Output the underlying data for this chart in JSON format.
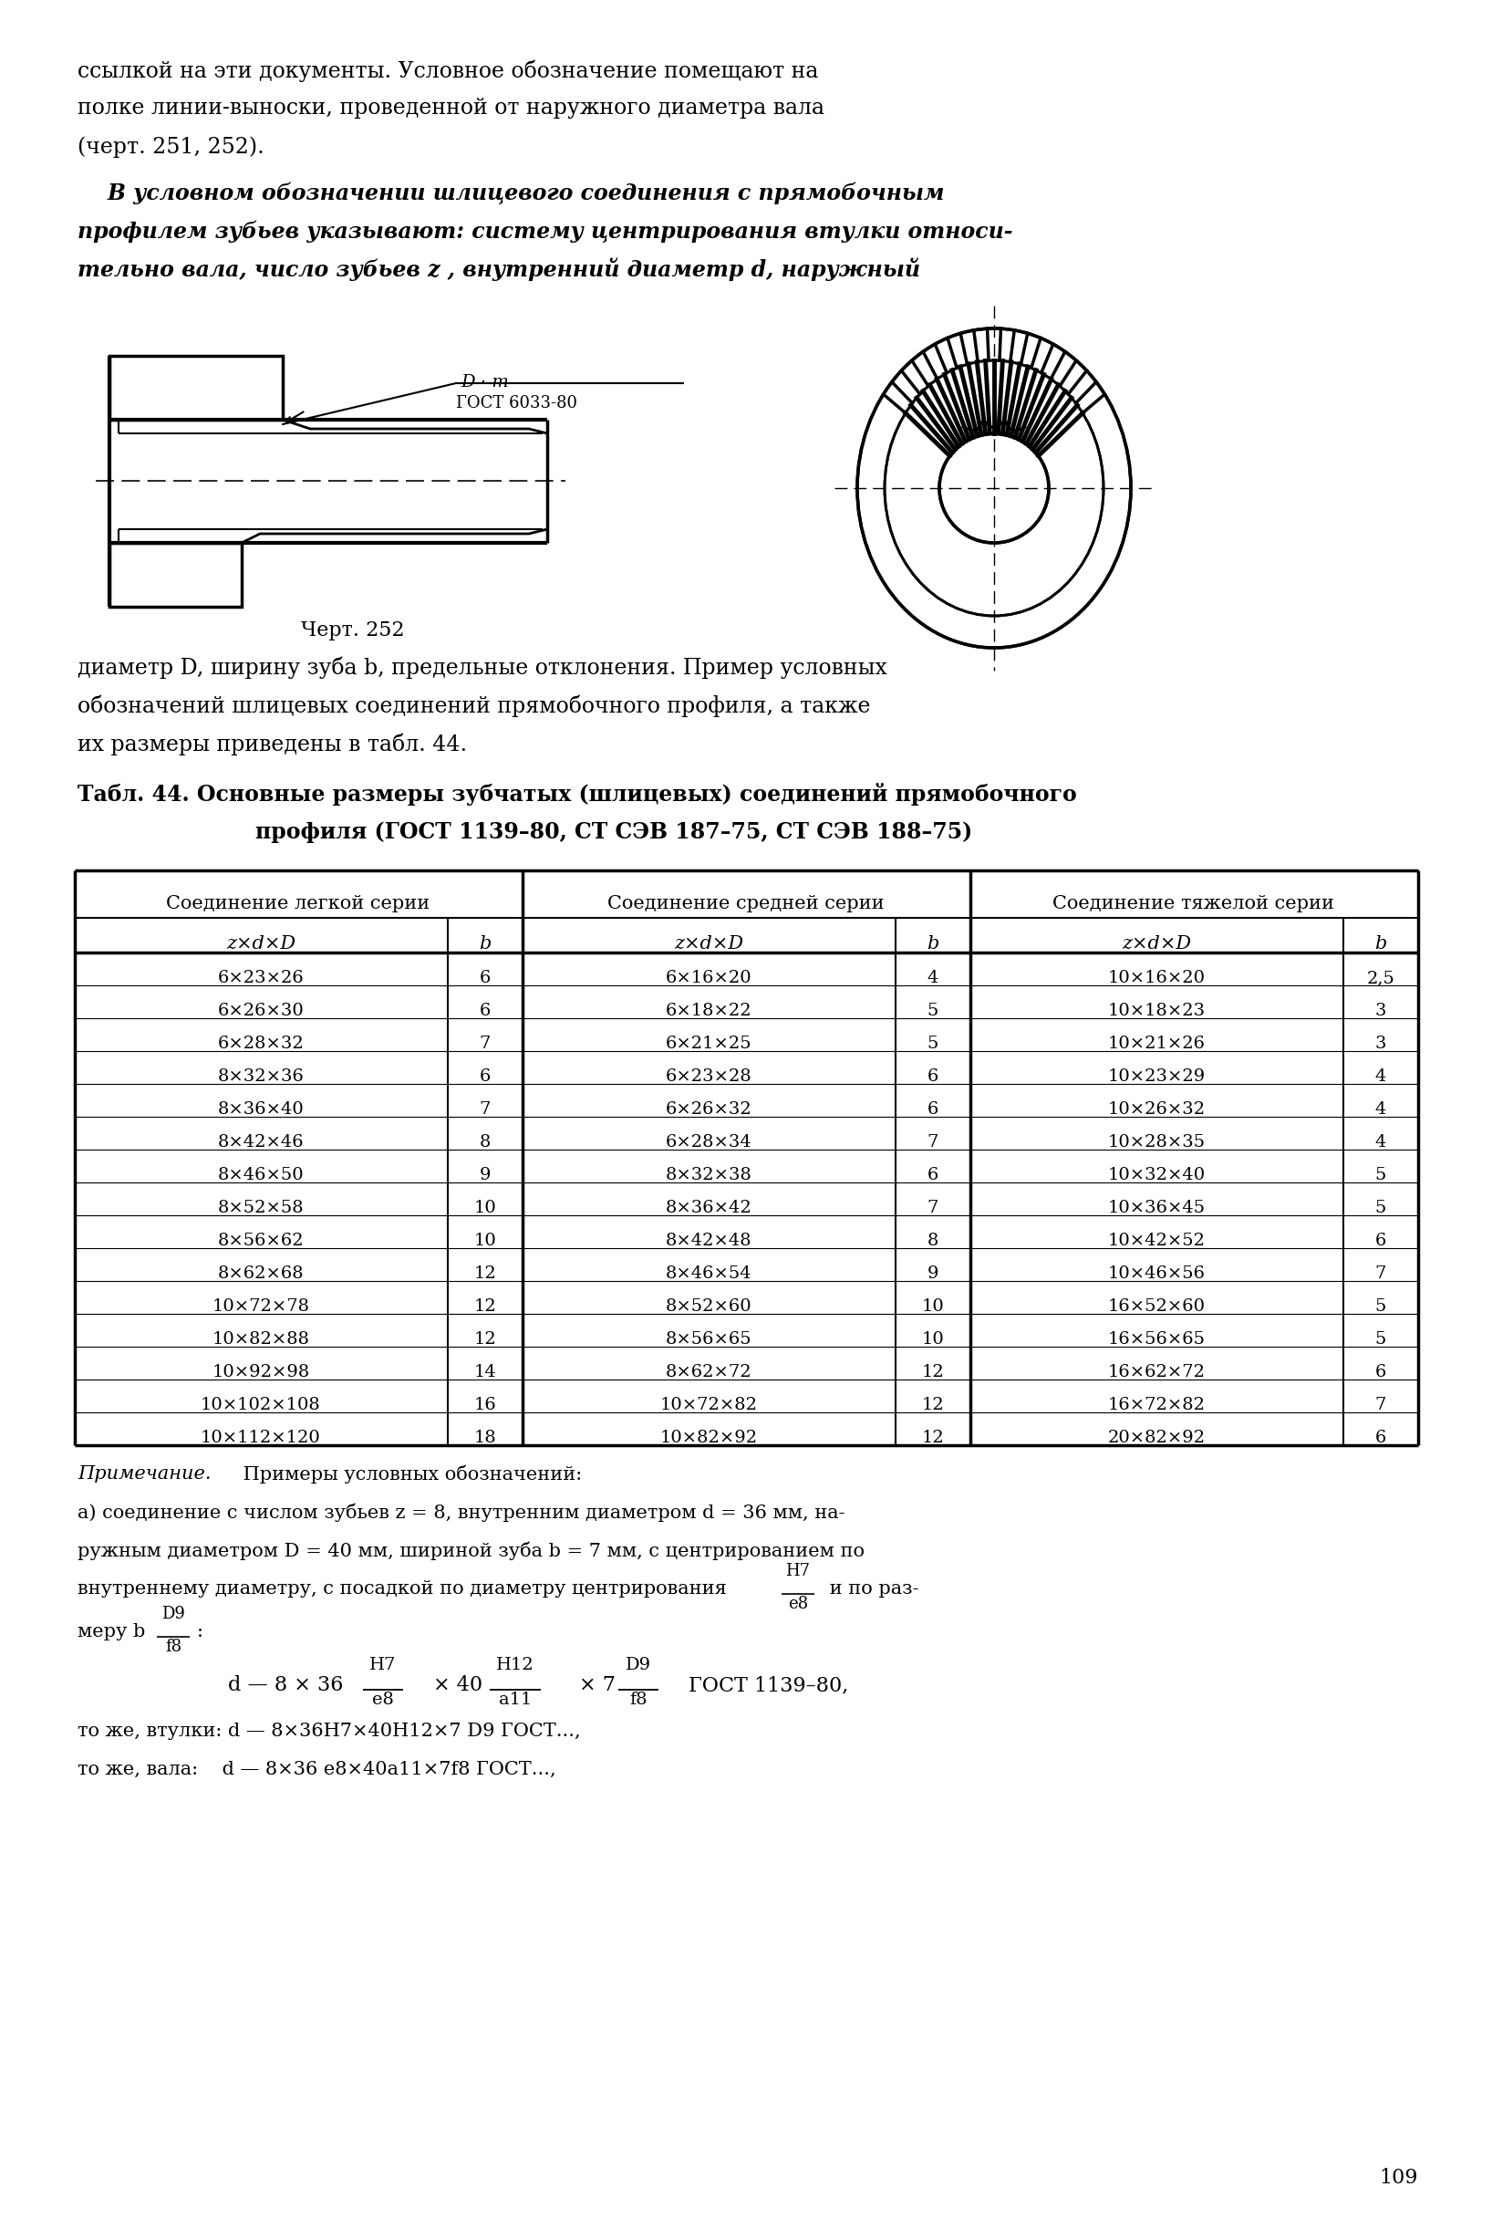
{
  "page_text_top": [
    "ссылкой на эти документы. Условное обозначение помещают на",
    "полке линии-выноски, проведенной от наружного диаметра вала",
    "(черт. 251, 252)."
  ],
  "page_text_italic1": "    В условном обозначении шлицевого соединения с прямобочным",
  "page_text_italic2": "профилем зубьев указывают: систему центрирования втулки относи-",
  "page_text_italic3": "тельно вала, число зубьев z , внутренний диаметр d, наружный",
  "chert_label": "Черт. 252",
  "text_after_fig": [
    "диаметр D, ширину зуба b, предельные отклонения. Пример условных",
    "обозначений шлицевых соединений прямобочного профиля, а также",
    "их размеры приведены в табл. 44."
  ],
  "table_title_line1": "Табл. 44. Основные размеры зубчатых (шлицевых) соединений прямобочного",
  "table_title_line2": "профиля (ГОСТ 1139–80, СТ СЭВ 187–75, СТ СЭВ 188–75)",
  "col_headers_1": [
    "Соединение легкой серии",
    "Соединение средней серии",
    "Соединение тяжелой серии"
  ],
  "col_headers_2": [
    "z×d×D",
    "b",
    "z×d×D",
    "b",
    "z×d×D",
    "b"
  ],
  "table_data": [
    [
      "6×23×26",
      "6",
      "6×16×20",
      "4",
      "10×16×20",
      "2,5"
    ],
    [
      "6×26×30",
      "6",
      "6×18×22",
      "5",
      "10×18×23",
      "3"
    ],
    [
      "6×28×32",
      "7",
      "6×21×25",
      "5",
      "10×21×26",
      "3"
    ],
    [
      "8×32×36",
      "6",
      "6×23×28",
      "6",
      "10×23×29",
      "4"
    ],
    [
      "8×36×40",
      "7",
      "6×26×32",
      "6",
      "10×26×32",
      "4"
    ],
    [
      "8×42×46",
      "8",
      "6×28×34",
      "7",
      "10×28×35",
      "4"
    ],
    [
      "8×46×50",
      "9",
      "8×32×38",
      "6",
      "10×32×40",
      "5"
    ],
    [
      "8×52×58",
      "10",
      "8×36×42",
      "7",
      "10×36×45",
      "5"
    ],
    [
      "8×56×62",
      "10",
      "8×42×48",
      "8",
      "10×42×52",
      "6"
    ],
    [
      "8×62×68",
      "12",
      "8×46×54",
      "9",
      "10×46×56",
      "7"
    ],
    [
      "10×72×78",
      "12",
      "8×52×60",
      "10",
      "16×52×60",
      "5"
    ],
    [
      "10×82×88",
      "12",
      "8×56×65",
      "10",
      "16×56×65",
      "5"
    ],
    [
      "10×92×98",
      "14",
      "8×62×72",
      "12",
      "16×62×72",
      "6"
    ],
    [
      "10×102×108",
      "16",
      "10×72×82",
      "12",
      "16×72×82",
      "7"
    ],
    [
      "10×112×120",
      "18",
      "10×82×92",
      "12",
      "20×82×92",
      "6"
    ]
  ],
  "note_italic": "Примечание.",
  "note_line1": " Примеры условных обозначений:",
  "note_line2": "а) соединение с числом зубьев z = 8, внутренним диаметром d = 36 мм, на-",
  "note_line3": "ружным диаметром D = 40 мм, шириной зуба b = 7 мм, с центрированием по",
  "note_line4_pre": "внутреннему диаметру, с посадкой по диаметру центрирования",
  "note_H7": "H7",
  "note_e8": "e8",
  "note_line4_post": " и по раз-",
  "note_line5_pre": "меру b",
  "note_D9": "D9",
  "note_f8": "f8",
  "note_line5_post": ":",
  "formula_pre": "d — 8 × 36",
  "frac1_top": "H7",
  "frac1_bot": "e8",
  "formula_mid1": "× 40",
  "frac2_top": "H12",
  "frac2_bot": "a11",
  "formula_mid2": "× 7",
  "frac3_top": "D9",
  "frac3_bot": "f8",
  "formula_post": "ГОСТ 1139–80,",
  "note_last1": "то же, втулки: d — 8×36H7×40H12×7 D9 ГОСТ...,",
  "note_last2": "то же, вала:    d — 8×36 e8×40a11×7f8 ГОСТ...,",
  "page_number": "109",
  "background_color": "#ffffff"
}
